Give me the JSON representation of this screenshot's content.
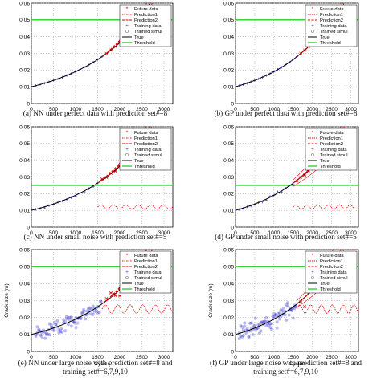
{
  "panels": [
    {
      "id": "a",
      "caption": "(a) NN under perfect data with prediction set#=8",
      "x_ticks": [
        "0",
        "500",
        "1000",
        "1500",
        "2000",
        "2500",
        "3000"
      ],
      "y_ticks": [
        "0",
        "0.01",
        "0.02",
        "0.03",
        "0.04",
        "0.05",
        "0.06"
      ],
      "xlabel": "",
      "ylabel": "",
      "legend": [
        "Future data",
        "Prediction1",
        "Prediction2",
        "Training data",
        "Trained simul",
        "True",
        "Threshold"
      ],
      "noise": "none",
      "start": 1600,
      "method": "NN"
    },
    {
      "id": "b",
      "caption": "(b) GP under perfect data with prediction set#=8",
      "x_ticks": [
        "0",
        "500",
        "1000",
        "1500",
        "2000",
        "2500",
        "3000"
      ],
      "y_ticks": [
        "0",
        "0.01",
        "0.02",
        "0.03",
        "0.04",
        "0.05",
        "0.06"
      ],
      "xlabel": "",
      "ylabel": "",
      "legend": [
        "Future data",
        "Prediction1",
        "Prediction2",
        "Training data",
        "Trained simul",
        "True",
        "Threshold"
      ],
      "noise": "none",
      "start": 1600,
      "method": "GP"
    },
    {
      "id": "c",
      "caption": "(c) NN under small noise with prediction set#=5",
      "x_ticks": [
        "0",
        "500",
        "1000",
        "1500",
        "2000",
        "2500",
        "3000"
      ],
      "y_ticks": [
        "0",
        "0.01",
        "0.02",
        "0.03",
        "0.04",
        "0.05",
        "0.06"
      ],
      "xlabel": "",
      "ylabel": "",
      "legend": [
        "Future data",
        "Prediction1",
        "Prediction2",
        "Training data",
        "Trained simul",
        "True",
        "Threshold"
      ],
      "noise": "small",
      "start": 1500,
      "method": "NN"
    },
    {
      "id": "d",
      "caption": "(d) GP under small noise with prediction set#=5",
      "x_ticks": [
        "0",
        "500",
        "1000",
        "1500",
        "2000",
        "2500",
        "3000"
      ],
      "y_ticks": [
        "0",
        "0.01",
        "0.02",
        "0.03",
        "0.04",
        "0.05",
        "0.06"
      ],
      "xlabel": "",
      "ylabel": "",
      "legend": [
        "Future data",
        "Prediction1",
        "Prediction2",
        "Training data",
        "Trained simul",
        "True",
        "Threshold"
      ],
      "noise": "small",
      "start": 1500,
      "method": "GP"
    },
    {
      "id": "e",
      "caption": "(e) NN under large noise with prediction set#=8 and",
      "caption2": "training set#=6,7,9,10",
      "x_ticks": [
        "0",
        "500",
        "1000",
        "1500",
        "2000",
        "2500",
        "3000"
      ],
      "y_ticks": [
        "0",
        "0.01",
        "0.02",
        "0.03",
        "0.04",
        "0.05",
        "0.06"
      ],
      "xlabel": "Cycles",
      "ylabel": "Crack size (m)",
      "legend": [
        "Future data",
        "Prediction1",
        "Prediction2",
        "Training data",
        "Trained simul",
        "True",
        "Threshold"
      ],
      "noise": "large",
      "start": 1600,
      "method": "NN"
    },
    {
      "id": "f",
      "caption": "(f) GP under large noise with prediction set#=8 and",
      "caption2": "training set#=6,7,9,10",
      "x_ticks": [
        "0",
        "500",
        "1000",
        "1500",
        "2000",
        "2500",
        "3000"
      ],
      "y_ticks": [
        "0",
        "0.01",
        "0.02",
        "0.03",
        "0.04",
        "0.05",
        "0.06"
      ],
      "xlabel": "Cycles",
      "ylabel": "Crack size (m)",
      "legend": [
        "Future data",
        "Prediction1",
        "Prediction2",
        "Training data",
        "Trained simul",
        "True",
        "Threshold"
      ],
      "noise": "large",
      "start": 1600,
      "method": "GP"
    }
  ],
  "chart_data": [
    {
      "type": "line",
      "panel": "a",
      "xlim": [
        0,
        3200
      ],
      "ylim": [
        0,
        0.06
      ],
      "threshold": 0.05,
      "grid": true,
      "legend_position": "top-right"
    },
    {
      "type": "line",
      "panel": "b",
      "xlim": [
        0,
        3200
      ],
      "ylim": [
        0,
        0.06
      ],
      "threshold": 0.05,
      "grid": true,
      "legend_position": "top-right"
    },
    {
      "type": "line",
      "panel": "c",
      "xlim": [
        0,
        3200
      ],
      "ylim": [
        0,
        0.06
      ],
      "threshold": 0.025,
      "grid": true,
      "legend_position": "top-right"
    },
    {
      "type": "line",
      "panel": "d",
      "xlim": [
        0,
        3200
      ],
      "ylim": [
        0,
        0.06
      ],
      "threshold": 0.025,
      "grid": true,
      "legend_position": "top-right"
    },
    {
      "type": "line",
      "panel": "e",
      "xlim": [
        0,
        3200
      ],
      "ylim": [
        0,
        0.06
      ],
      "threshold": 0.05,
      "grid": true,
      "legend_position": "top-right"
    },
    {
      "type": "line",
      "panel": "f",
      "xlim": [
        0,
        3200
      ],
      "ylim": [
        0,
        0.06
      ],
      "threshold": 0.05,
      "grid": true,
      "legend_position": "top-right"
    }
  ],
  "colors": {
    "prediction": "#e00000",
    "threshold": "#22cc22",
    "training": "#3a3ad0",
    "future": "#e00000",
    "true": "#000000"
  }
}
